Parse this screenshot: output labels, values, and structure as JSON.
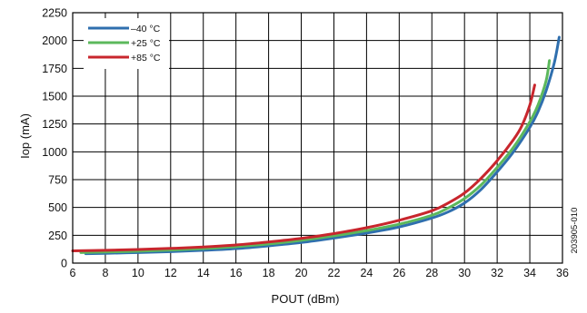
{
  "chart_data": {
    "type": "line",
    "xlabel": "POUT (dBm)",
    "ylabel": "Iop (mA)",
    "xlim": [
      6,
      36
    ],
    "ylim": [
      0,
      2250
    ],
    "xticks": [
      6,
      8,
      10,
      12,
      14,
      16,
      18,
      20,
      22,
      24,
      26,
      28,
      30,
      32,
      34,
      36
    ],
    "yticks": [
      0,
      250,
      500,
      750,
      1000,
      1250,
      1500,
      1750,
      2000,
      2250
    ],
    "grid": true,
    "legend_position": "top-left",
    "figure_id": "203905-010",
    "series": [
      {
        "name": "–40 °C",
        "color": "#2f6fae",
        "x": [
          6.8,
          8,
          10,
          12,
          14,
          16,
          18,
          20,
          22,
          24,
          26,
          28,
          29,
          30,
          31,
          32,
          33,
          34,
          34.5,
          35,
          35.5,
          35.8
        ],
        "y": [
          85,
          88,
          95,
          103,
          115,
          130,
          155,
          185,
          225,
          270,
          325,
          405,
          460,
          540,
          660,
          820,
          1000,
          1220,
          1360,
          1550,
          1800,
          2030
        ]
      },
      {
        "name": "+25 °C",
        "color": "#5cb85c",
        "x": [
          6.5,
          8,
          10,
          12,
          14,
          16,
          18,
          20,
          22,
          24,
          26,
          28,
          29,
          30,
          31,
          32,
          33,
          34,
          34.5,
          35,
          35.2
        ],
        "y": [
          95,
          100,
          107,
          117,
          130,
          148,
          172,
          205,
          245,
          292,
          350,
          430,
          495,
          580,
          700,
          860,
          1040,
          1270,
          1420,
          1640,
          1820
        ]
      },
      {
        "name": "+85 °C",
        "color": "#c8262d",
        "x": [
          6,
          8,
          10,
          12,
          14,
          16,
          18,
          20,
          22,
          24,
          26,
          28,
          29,
          30,
          31,
          32,
          33,
          33.5,
          34,
          34.3
        ],
        "y": [
          110,
          115,
          122,
          132,
          145,
          163,
          190,
          222,
          265,
          318,
          385,
          470,
          540,
          630,
          760,
          920,
          1110,
          1230,
          1420,
          1600
        ]
      }
    ]
  }
}
